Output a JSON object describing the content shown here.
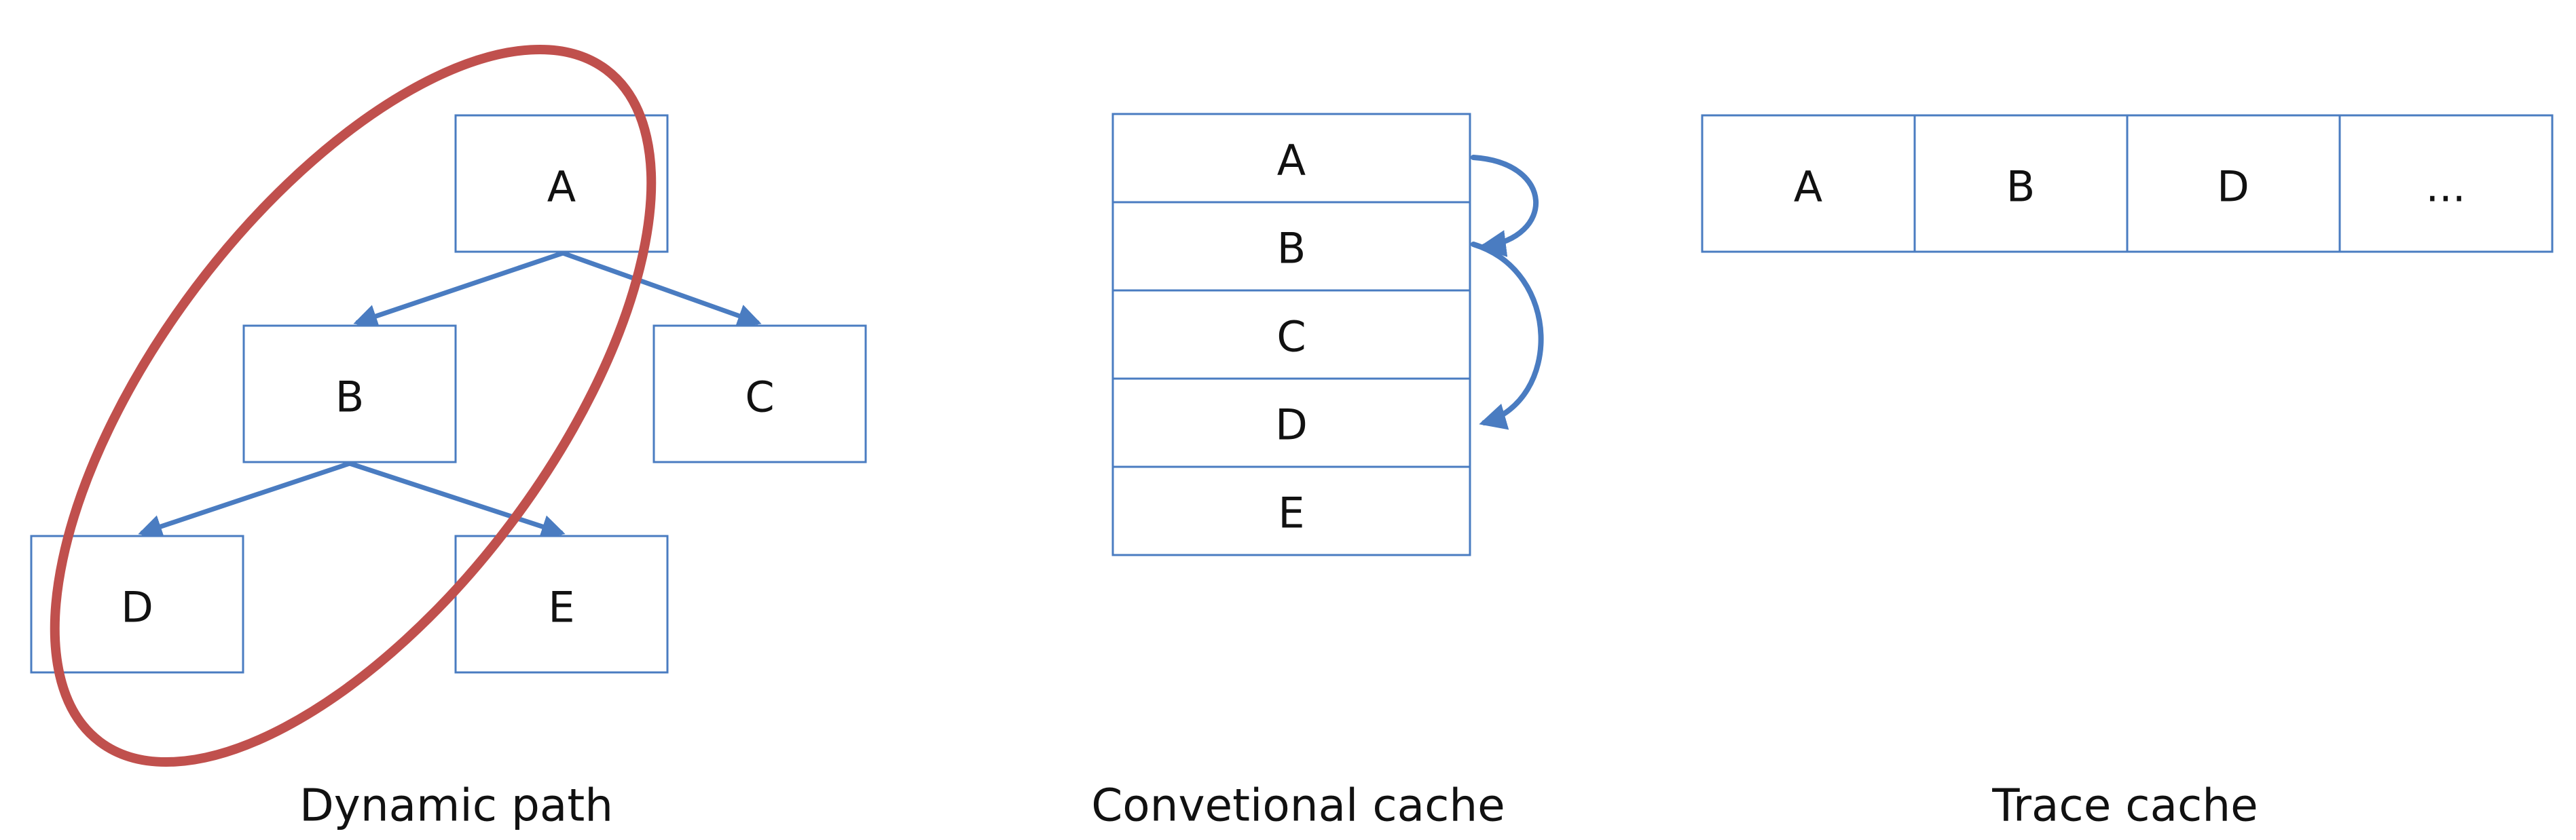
{
  "dynamic_path": {
    "caption": "Dynamic path",
    "nodes": {
      "a": "A",
      "b": "B",
      "c": "C",
      "d": "D",
      "e": "E"
    }
  },
  "conventional_cache": {
    "caption": "Convetional cache",
    "lines": [
      "A",
      "B",
      "C",
      "D",
      "E"
    ]
  },
  "trace_cache": {
    "caption": "Trace cache",
    "entries": [
      "A",
      "B",
      "D",
      "..."
    ]
  },
  "colors": {
    "box_border": "#4a7cc1",
    "arrow": "#4a7cc1",
    "highlight": "#c0504d",
    "text": "#111111"
  }
}
